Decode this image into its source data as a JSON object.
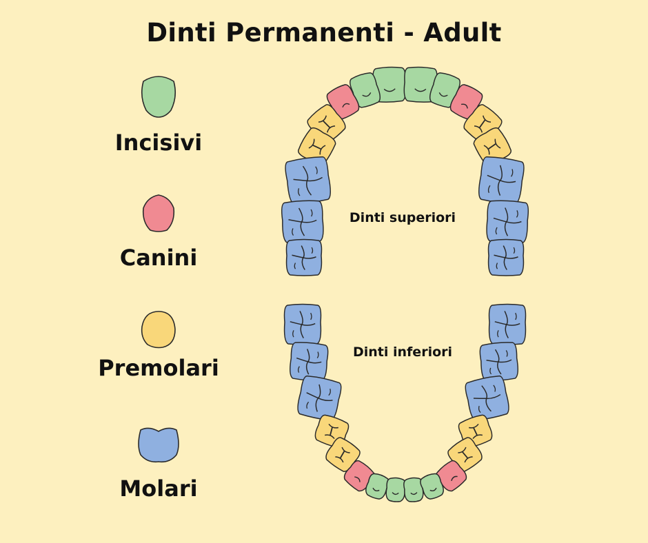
{
  "title": "Dinti Permanenti - Adult",
  "legend": [
    {
      "label": "Incisivi",
      "color": "#a7d8a2",
      "icon": "incisor-icon"
    },
    {
      "label": "Canini",
      "color": "#f08a92",
      "icon": "canine-icon"
    },
    {
      "label": "Premolari",
      "color": "#f9d77a",
      "icon": "premolar-icon"
    },
    {
      "label": "Molari",
      "color": "#8fb0e0",
      "icon": "molar-icon"
    }
  ],
  "jaws": {
    "upper_label": "Dinti superiori",
    "lower_label": "Dinti inferiori"
  },
  "colors": {
    "background": "#fdf0bf",
    "outline": "#2a2a2a"
  }
}
